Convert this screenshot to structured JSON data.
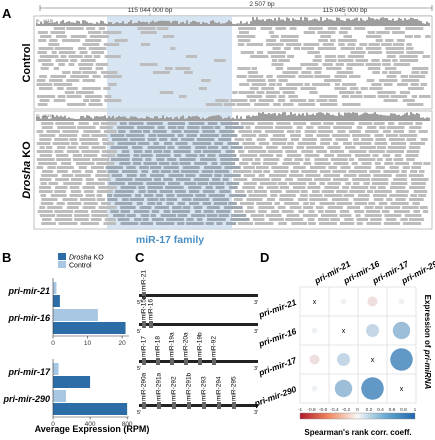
{
  "panels": {
    "a": {
      "letter": "A",
      "coord_left": "115 044 000 bp",
      "span": "2 507 bp",
      "coord_right": "115 045 000 bp",
      "range_control": "[0 - 1015]",
      "range_ko": "[0 - 1015]",
      "track_control": "Control",
      "track_ko_italic": "Drosha",
      "track_ko_suffix": " KO",
      "region_label": "miR-17 family"
    },
    "b": {
      "letter": "B",
      "legend_ko_italic": "Drosha",
      "legend_ko_suffix": " KO",
      "legend_control": "Control",
      "xlabel": "Average Expression (RPM)",
      "colors": {
        "ko": "#2c6da8",
        "control": "#a8c7e2"
      }
    },
    "c": {
      "letter": "C",
      "rows": [
        {
          "mirs": [
            "miR-21"
          ]
        },
        {
          "mirs": [
            "miR-15a",
            "miR-16"
          ]
        },
        {
          "mirs": [
            "miR-17",
            "miR-18",
            "miR-19a",
            "miR-20a",
            "miR-19b",
            "miR-92"
          ]
        },
        {
          "mirs": [
            "miR-290a",
            "miR-291a",
            "miR-292",
            "miR-291b",
            "miR-293",
            "miR-294",
            "miR-295"
          ]
        }
      ],
      "end5": "5'",
      "end3": "3'"
    },
    "d": {
      "letter": "D",
      "right_label_prefix": "Expression of ",
      "right_label_italic": "pri-miRNA",
      "colorbar_label": "Spearman's rank corr. coeff.",
      "colorbar_ticks": [
        "-1",
        "-0.8",
        "-0.6",
        "-0.4",
        "-0.2",
        "0",
        "0.2",
        "0.4",
        "0.6",
        "0.8",
        "1"
      ],
      "diag_mark": "x",
      "colors": {
        "neg": "#c0504d",
        "mid": "#f7f7f7",
        "pos": "#2f78b5"
      }
    }
  },
  "chart_data": [
    {
      "type": "bar",
      "panel": "B-top",
      "categories": [
        "pri-mir-21",
        "pri-mir-16"
      ],
      "series": [
        {
          "name": "Drosha KO",
          "values": [
            2,
            21
          ]
        },
        {
          "name": "Control",
          "values": [
            1,
            13
          ]
        }
      ],
      "xlim": [
        0,
        22
      ],
      "xticks": [
        "0",
        "10",
        "20"
      ]
    },
    {
      "type": "bar",
      "panel": "B-bottom",
      "categories": [
        "pri-mir-17",
        "pri-mir-290"
      ],
      "series": [
        {
          "name": "Drosha KO",
          "values": [
            400,
            800
          ]
        },
        {
          "name": "Control",
          "values": [
            60,
            140
          ]
        }
      ],
      "xlim": [
        0,
        820
      ],
      "xticks": [
        "0",
        "400",
        "800"
      ]
    },
    {
      "type": "heatmap",
      "panel": "D",
      "rows": [
        "pri-mir-21",
        "pri-mir-16",
        "pri-mir-17",
        "pri-mir-290"
      ],
      "cols": [
        "pri-mir-21",
        "pri-mir-16",
        "pri-mir-17",
        "pri-mir-290"
      ],
      "values": [
        [
          null,
          0.05,
          -0.15,
          0.05
        ],
        [
          0.05,
          null,
          0.25,
          0.45
        ],
        [
          -0.15,
          0.25,
          null,
          0.75
        ],
        [
          0.05,
          0.45,
          0.75,
          null
        ]
      ],
      "range": [
        -1,
        1
      ]
    }
  ]
}
